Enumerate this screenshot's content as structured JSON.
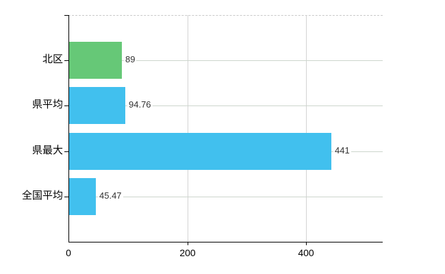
{
  "chart_data": {
    "type": "bar",
    "orientation": "horizontal",
    "title": "",
    "xlabel": "",
    "ylabel": "",
    "categories": [
      "北区",
      "県平均",
      "県最大",
      "全国平均"
    ],
    "values": [
      89,
      94.76,
      441,
      45.47
    ],
    "value_labels": [
      "89",
      "94.76",
      "441",
      "45.47"
    ],
    "bar_colors": [
      "#66c877",
      "#41c0ee",
      "#41c0ee",
      "#41c0ee"
    ],
    "x_ticks": [
      0,
      200,
      400
    ],
    "x_tick_labels": [
      "0",
      "200",
      "400"
    ],
    "xlim": [
      0,
      529
    ],
    "grid": true,
    "legend": "none"
  },
  "colors": {
    "background": "#ffffff",
    "bar_green": "#66c877",
    "bar_blue": "#41c0ee",
    "axis": "#000000",
    "gridline_horizontal": "#ccd5cc",
    "gridline_vertical": "#d4d4d4",
    "top_border_dashed": "#c8c8c8",
    "value_text": "#333333",
    "tick_text": "#000000"
  }
}
